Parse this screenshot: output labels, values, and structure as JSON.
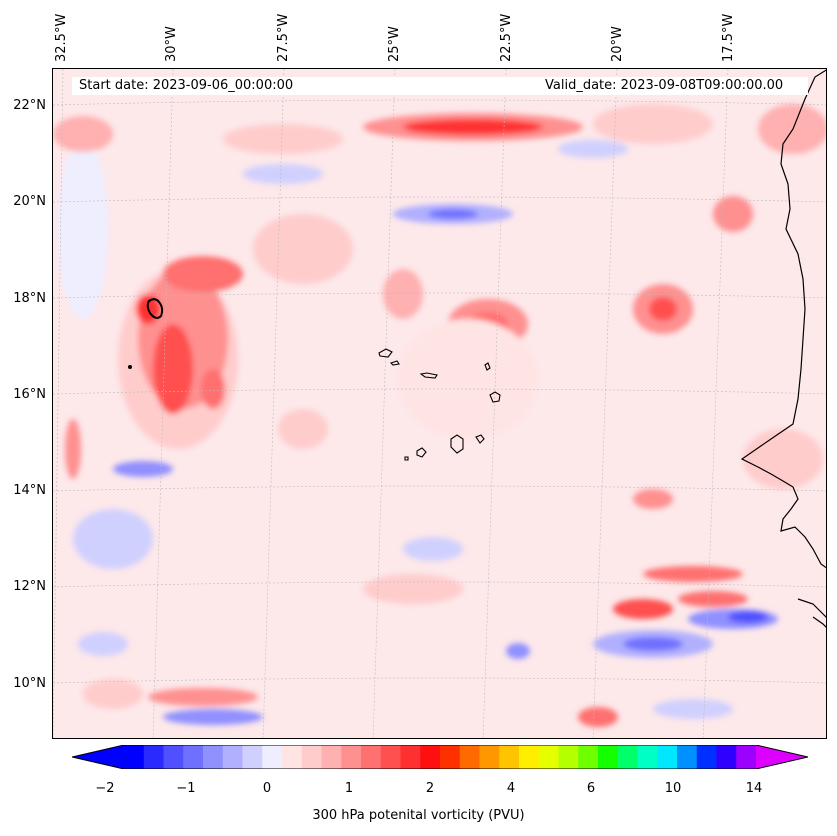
{
  "map": {
    "start_date": "Start date: 2023-09-06_00:00:00",
    "valid_date": "Valid_date: 2023-09-08T09:00:00.00",
    "longitude_labels": [
      "32.5°W",
      "30°W",
      "27.5°W",
      "25°W",
      "22.5°W",
      "20°W",
      "17.5°W"
    ],
    "latitude_labels": [
      "22°N",
      "20°N",
      "18°N",
      "16°N",
      "14°N",
      "12°N",
      "10°N"
    ],
    "gridlines": "dotted gray",
    "coastline_color": "#000000"
  },
  "colorbar": {
    "label": "300 hPa potenital vorticity (PVU)",
    "tick_labels": [
      "−2",
      "−1",
      "0",
      "1",
      "2",
      "4",
      "6",
      "10",
      "14"
    ],
    "colors": [
      "#0000ff",
      "#2a2aff",
      "#5050ff",
      "#7070ff",
      "#9090ff",
      "#b0b0ff",
      "#d0d0ff",
      "#eeeeff",
      "#ffe4e4",
      "#ffcccc",
      "#ffb0b0",
      "#ff9090",
      "#ff7070",
      "#ff5050",
      "#ff3030",
      "#ff1010",
      "#ff3000",
      "#ff6a00",
      "#ff9800",
      "#ffc400",
      "#ffee00",
      "#e6ff00",
      "#b4ff00",
      "#6eff00",
      "#14ff00",
      "#00ff6a",
      "#00ffc4",
      "#00e8ff",
      "#0090ff",
      "#0030ff",
      "#3000ff",
      "#9c00ff"
    ],
    "extend": "both",
    "min_color": "#0000ff",
    "max_color": "#dd00ff"
  }
}
